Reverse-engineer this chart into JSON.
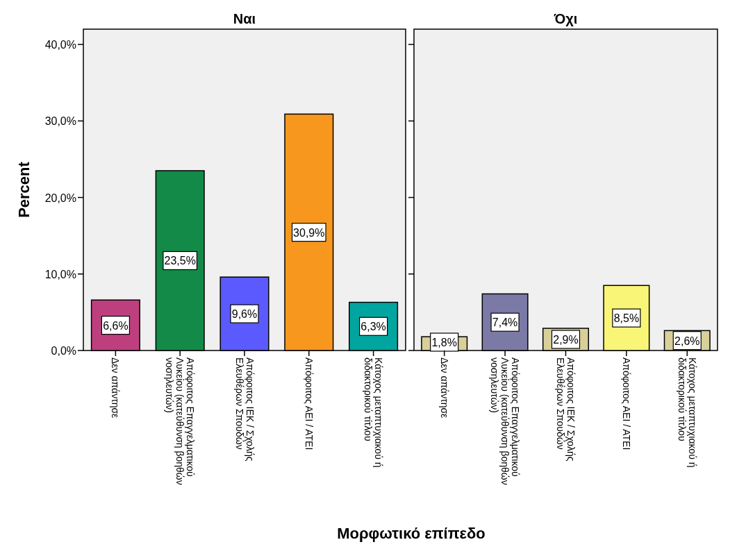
{
  "chart_data": [
    {
      "type": "bar",
      "title": "Ναι",
      "ylabel": "Percent",
      "xlabel": "Μορφωτικό επίπεδο",
      "categories": [
        "Δεν απάντησε",
        "Απόφοιτος Επαγγελματικού Λυκείου (κατεύθυνση βοηθών νοσηλευτών)",
        "Απόφοιτος ΙΕΚ / Σχολής Ελευθέρων Σπουδών",
        "Απόφοιτος ΑΕΙ / ΑΤΕΙ",
        "Κάτοχος μεταπτυχιακού ή διδακτορικού τίτλου"
      ],
      "values": [
        6.6,
        23.5,
        9.6,
        30.9,
        6.3
      ],
      "colors": [
        "#be3f7e",
        "#138a47",
        "#5a5aff",
        "#f7971e",
        "#00a5a0"
      ],
      "value_labels": [
        "6,6%",
        "23,5%",
        "9,6%",
        "30,9%",
        "6,3%"
      ],
      "ylim": [
        0,
        42
      ],
      "yticks": [
        {
          "value": 0,
          "label": "0,0%"
        },
        {
          "value": 10,
          "label": "10,0%"
        },
        {
          "value": 20,
          "label": "20,0%"
        },
        {
          "value": 30,
          "label": "30,0%"
        },
        {
          "value": 40,
          "label": "40,0%"
        }
      ]
    },
    {
      "type": "bar",
      "title": "Όχι",
      "categories": [
        "Δεν απάντησε",
        "Απόφοιτος Επαγγελματικού Λυκείου (κατεύθυνση βοηθών νοσηλευτών)",
        "Απόφοιτος ΙΕΚ / Σχολής Ελευθέρων Σπουδών",
        "Απόφοιτος ΑΕΙ / ΑΤΕΙ",
        "Κάτοχος μεταπτυχιακού ή διδακτορικού τίτλου"
      ],
      "values": [
        1.8,
        7.4,
        2.9,
        8.5,
        2.6
      ],
      "colors": [
        "#d8cf9a",
        "#7b7aa6",
        "#d8cf9a",
        "#f9f577",
        "#d8cf9a"
      ],
      "value_labels": [
        "1,8%",
        "7,4%",
        "2,9%",
        "8,5%",
        "2,6%"
      ],
      "ylim": [
        0,
        42
      ],
      "yticks": [
        {
          "value": 0,
          "label": null
        },
        {
          "value": 10,
          "label": null
        },
        {
          "value": 20,
          "label": null
        },
        {
          "value": 30,
          "label": null
        },
        {
          "value": 40,
          "label": null
        }
      ],
      "tick_labels": "x"
    }
  ]
}
